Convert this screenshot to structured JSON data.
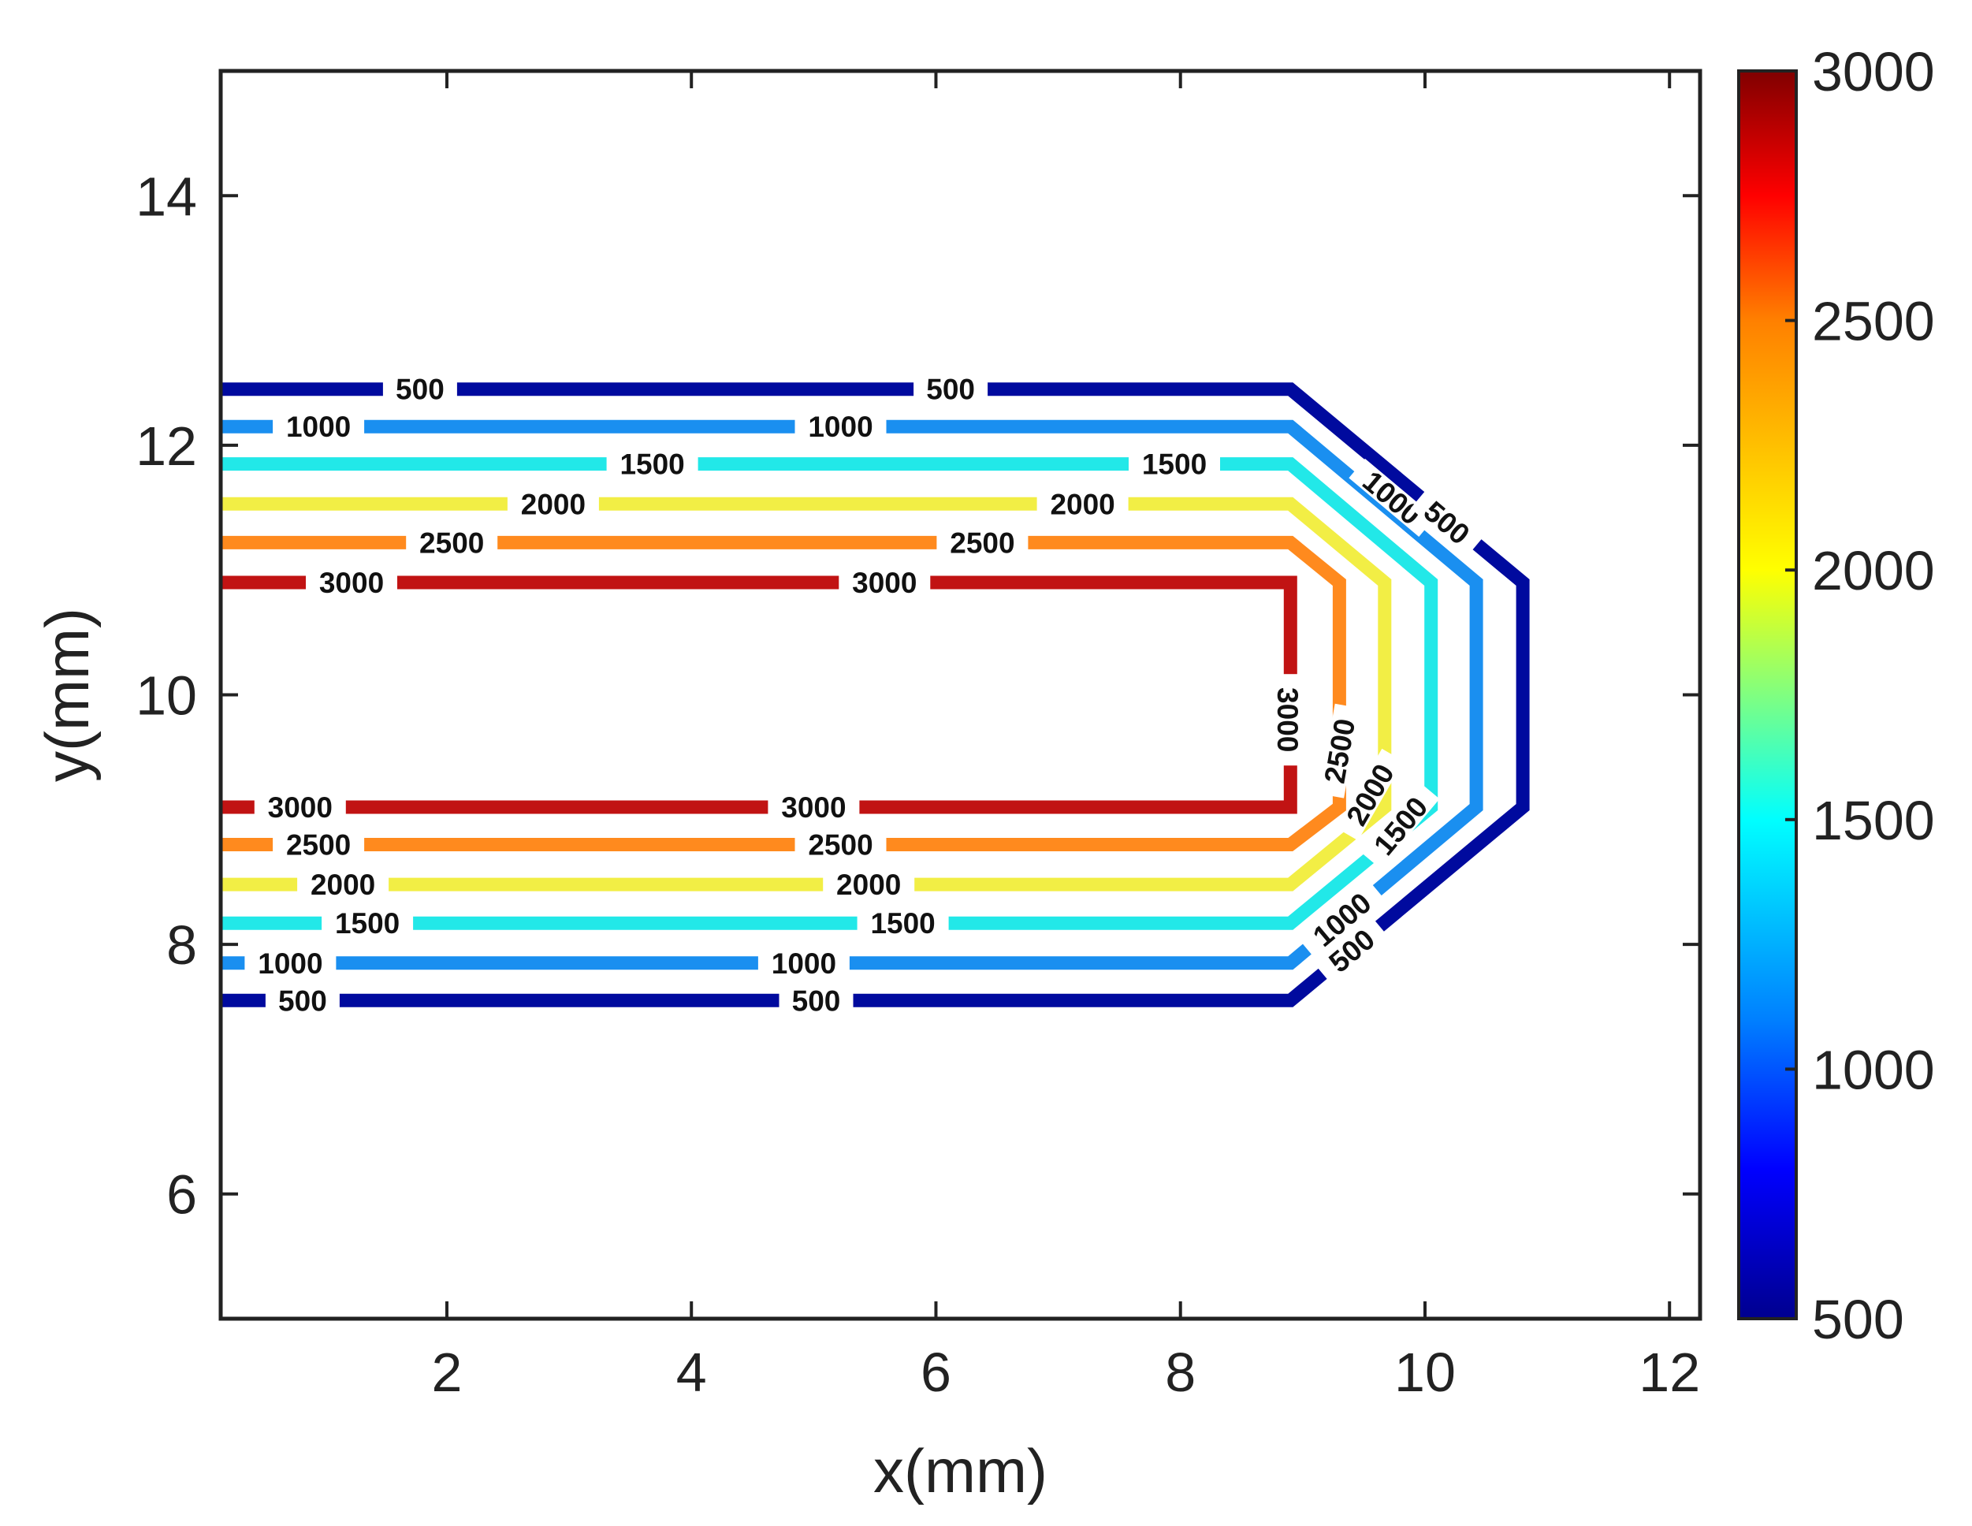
{
  "chart_data": {
    "type": "contour",
    "title": "",
    "xlabel": "x(mm)",
    "ylabel": "y(mm)",
    "xlim": [
      0.15,
      12.25
    ],
    "ylim": [
      5.0,
      15.0
    ],
    "xticks": [
      2,
      4,
      6,
      8,
      10,
      12
    ],
    "yticks": [
      6,
      8,
      10,
      12,
      14
    ],
    "grid": false,
    "colorbar": {
      "range": [
        500,
        3000
      ],
      "ticks": [
        500,
        1000,
        1500,
        2000,
        2500,
        3000
      ],
      "colors": [
        {
          "from": 500,
          "to": 800,
          "color": "#000a9e"
        },
        {
          "from": 800,
          "to": 1600,
          "color": "#1a8ff0"
        },
        {
          "from": 1600,
          "to": 2700,
          "color": "#f2e430"
        },
        {
          "from": 2700,
          "to": 3000,
          "color": "#c80d0d"
        }
      ],
      "gradient_stops": [
        {
          "value": 500,
          "color": "#00008f"
        },
        {
          "value": 800,
          "color": "#0000ff"
        },
        {
          "value": 1100,
          "color": "#0080ff"
        },
        {
          "value": 1500,
          "color": "#00ffff"
        },
        {
          "value": 1750,
          "color": "#80ff80"
        },
        {
          "value": 2000,
          "color": "#ffff00"
        },
        {
          "value": 2500,
          "color": "#ff8000"
        },
        {
          "value": 2750,
          "color": "#ff0000"
        },
        {
          "value": 3000,
          "color": "#800000"
        }
      ]
    },
    "series": [
      {
        "name": "500",
        "level": 500,
        "color": "#000a9e",
        "y_top": 12.45,
        "y_bottom": 7.55,
        "x_bend": 8.9,
        "x_tip": 10.8,
        "y_tip_top": 10.9,
        "y_tip_bottom": 9.1
      },
      {
        "name": "1000",
        "level": 1000,
        "color": "#1a8ff0",
        "y_top": 12.15,
        "y_bottom": 7.85,
        "x_bend": 8.9,
        "x_tip": 10.42,
        "y_tip_top": 10.9,
        "y_tip_bottom": 9.1
      },
      {
        "name": "1500",
        "level": 1500,
        "color": "#22e8e8",
        "y_top": 11.85,
        "y_bottom": 8.17,
        "x_bend": 8.9,
        "x_tip": 10.05,
        "y_tip_top": 10.9,
        "y_tip_bottom": 9.1
      },
      {
        "name": "2000",
        "level": 2000,
        "color": "#f2ee45",
        "y_top": 11.53,
        "y_bottom": 8.48,
        "x_bend": 8.9,
        "x_tip": 9.67,
        "y_tip_top": 10.9,
        "y_tip_bottom": 9.1
      },
      {
        "name": "2500",
        "level": 2500,
        "color": "#ff8a1e",
        "y_top": 11.22,
        "y_bottom": 8.8,
        "x_bend": 8.9,
        "x_tip": 9.3,
        "y_tip_top": 10.9,
        "y_tip_bottom": 9.1
      },
      {
        "name": "3000",
        "level": 3000,
        "color": "#c11313",
        "y_top": 10.9,
        "y_bottom": 9.1,
        "x_bend": 8.9,
        "x_tip": 8.9,
        "y_tip_top": 10.9,
        "y_tip_bottom": 9.1
      }
    ],
    "contour_labels": [
      {
        "text": "500",
        "x": 1.78,
        "y": 12.45,
        "angle": 0
      },
      {
        "text": "500",
        "x": 6.12,
        "y": 12.45,
        "angle": 0
      },
      {
        "text": "1000",
        "x": 0.95,
        "y": 12.15,
        "angle": 0
      },
      {
        "text": "1000",
        "x": 5.22,
        "y": 12.15,
        "angle": 0
      },
      {
        "text": "1500",
        "x": 3.68,
        "y": 11.85,
        "angle": 0
      },
      {
        "text": "1500",
        "x": 7.95,
        "y": 11.85,
        "angle": 0
      },
      {
        "text": "2000",
        "x": 2.87,
        "y": 11.53,
        "angle": 0
      },
      {
        "text": "2000",
        "x": 7.2,
        "y": 11.53,
        "angle": 0
      },
      {
        "text": "2500",
        "x": 2.04,
        "y": 11.22,
        "angle": 0
      },
      {
        "text": "2500",
        "x": 6.38,
        "y": 11.22,
        "angle": 0
      },
      {
        "text": "3000",
        "x": 1.22,
        "y": 10.9,
        "angle": 0
      },
      {
        "text": "3000",
        "x": 5.58,
        "y": 10.9,
        "angle": 0
      },
      {
        "text": "3000",
        "x": 0.8,
        "y": 9.1,
        "angle": 0
      },
      {
        "text": "3000",
        "x": 5.0,
        "y": 9.1,
        "angle": 0
      },
      {
        "text": "2500",
        "x": 0.95,
        "y": 8.8,
        "angle": 0
      },
      {
        "text": "2500",
        "x": 5.22,
        "y": 8.8,
        "angle": 0
      },
      {
        "text": "2000",
        "x": 1.15,
        "y": 8.48,
        "angle": 0
      },
      {
        "text": "2000",
        "x": 5.45,
        "y": 8.48,
        "angle": 0
      },
      {
        "text": "1500",
        "x": 1.35,
        "y": 8.17,
        "angle": 0
      },
      {
        "text": "1500",
        "x": 5.73,
        "y": 8.17,
        "angle": 0
      },
      {
        "text": "1000",
        "x": 0.72,
        "y": 7.85,
        "angle": 0
      },
      {
        "text": "1000",
        "x": 4.92,
        "y": 7.85,
        "angle": 0
      },
      {
        "text": "500",
        "x": 0.82,
        "y": 7.55,
        "angle": 0
      },
      {
        "text": "500",
        "x": 5.02,
        "y": 7.55,
        "angle": 0
      },
      {
        "text": "3000",
        "x": 8.88,
        "y": 9.8,
        "angle": 90
      },
      {
        "text": "2500",
        "x": 9.3,
        "y": 9.55,
        "angle": -80
      },
      {
        "text": "2000",
        "x": 9.55,
        "y": 9.2,
        "angle": -60
      },
      {
        "text": "1500",
        "x": 9.8,
        "y": 8.95,
        "angle": -50
      },
      {
        "text": "1000",
        "x": 9.32,
        "y": 8.2,
        "angle": -40
      },
      {
        "text": "500",
        "x": 9.4,
        "y": 7.95,
        "angle": -40
      },
      {
        "text": "1000",
        "x": 9.73,
        "y": 11.58,
        "angle": 40
      },
      {
        "text": "500",
        "x": 10.18,
        "y": 11.38,
        "angle": 40
      }
    ]
  }
}
